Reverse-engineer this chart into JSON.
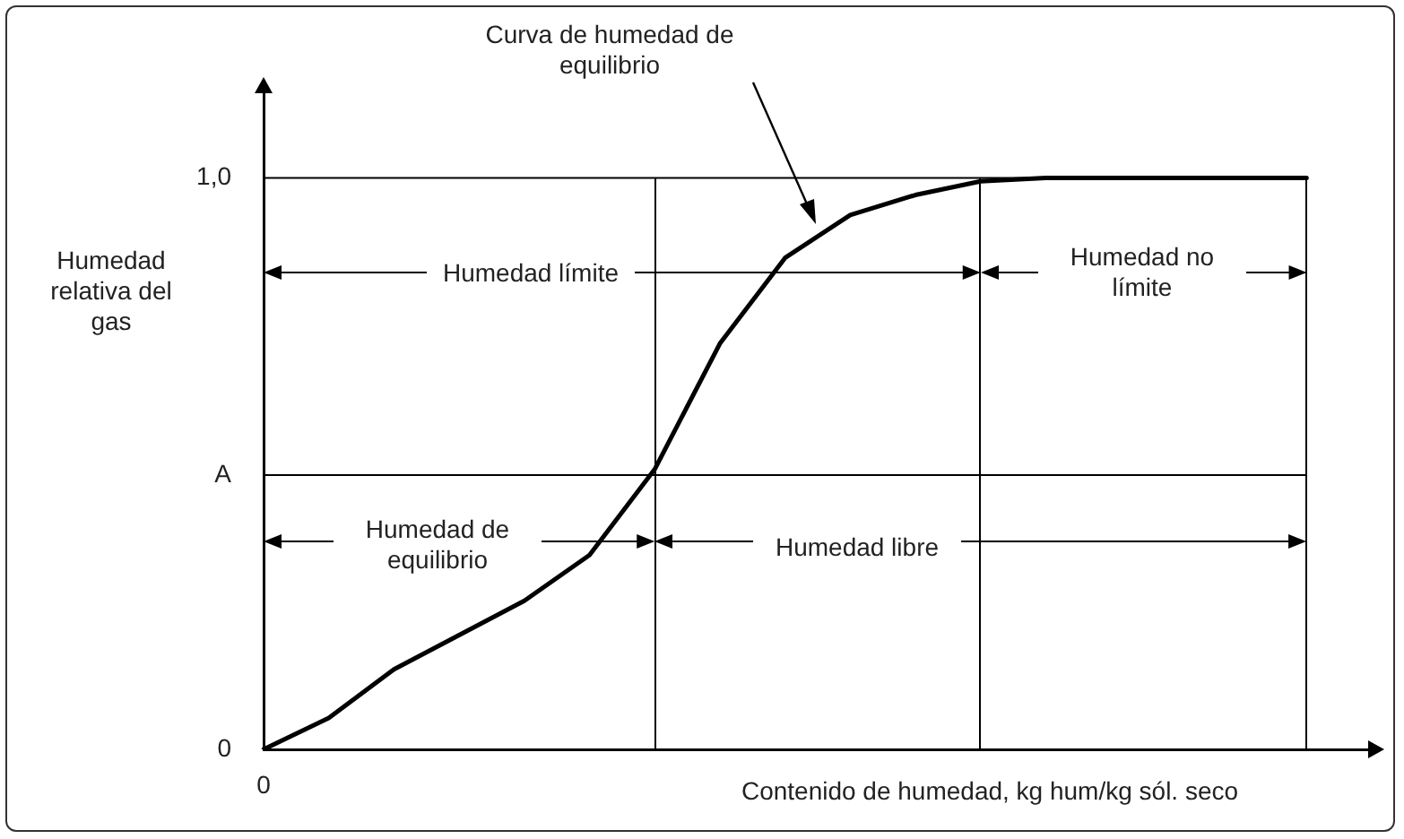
{
  "chart_data": {
    "type": "line",
    "xlabel": "Contenido de humedad, kg hum/kg sól. seco",
    "ylabel": "Humedad relativa del gas",
    "categories": [
      "0",
      null,
      null,
      null,
      null,
      null,
      null,
      null,
      null,
      null,
      null,
      null,
      null,
      null,
      null,
      null,
      null,
      null
    ],
    "ylim": [
      0,
      1.17
    ],
    "yticks": [
      0,
      {
        "value": 0.48,
        "label": "A"
      },
      {
        "value": 1,
        "label": "1,0"
      }
    ],
    "grid": false,
    "legend": false,
    "marker": "none",
    "line_style": "solid",
    "series": [
      {
        "color": "#000000",
        "values": [
          0,
          0.055,
          0.14,
          0.2,
          0.26,
          0.34,
          0.49,
          0.71,
          0.86,
          0.935,
          0.97,
          0.994,
          1,
          1,
          1,
          1,
          1,
          null
        ]
      }
    ],
    "ref_lines": [
      {
        "axis": "y",
        "value": 1,
        "color": "#000000"
      },
      {
        "axis": "y",
        "value": 0.48,
        "color": "#000000"
      }
    ],
    "annotations": [
      "Curva de humedad de equilibrio",
      "Humedad límite",
      "Humedad no límite",
      "Humedad de equilibrio",
      "Humedad libre"
    ]
  }
}
